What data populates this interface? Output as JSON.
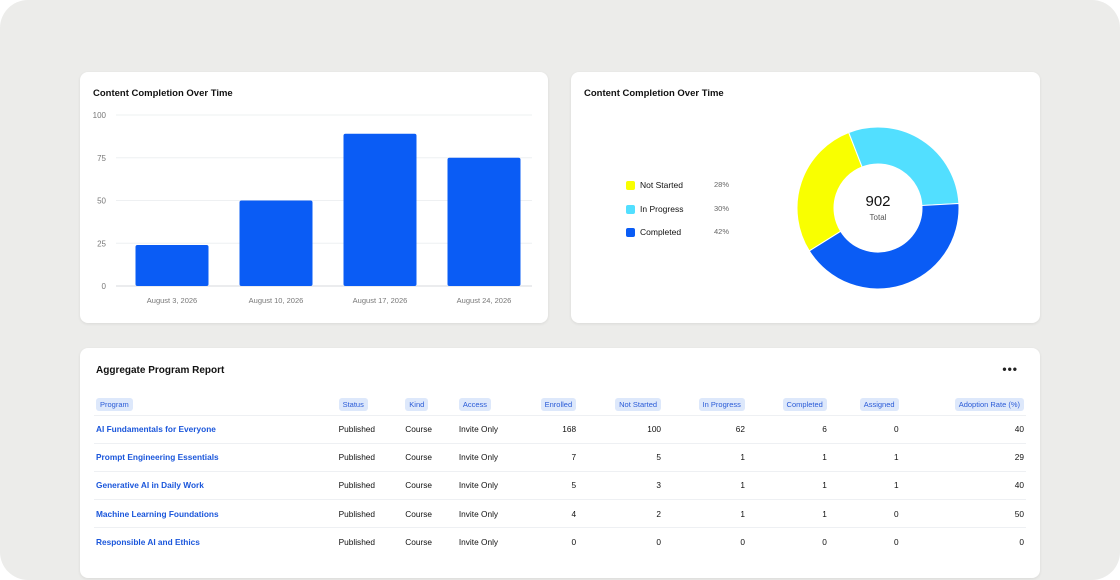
{
  "bar_card": {
    "title": "Content Completion Over Time"
  },
  "donut_card": {
    "title": "Content Completion Over Time",
    "total": "902",
    "total_label": "Total",
    "legend": [
      {
        "label": "Not Started",
        "pct": "28%",
        "color": "#f9ff00"
      },
      {
        "label": "In Progress",
        "pct": "30%",
        "color": "#52dfff"
      },
      {
        "label": "Completed",
        "pct": "42%",
        "color": "#0a5cf5"
      }
    ]
  },
  "chart_data": [
    {
      "type": "bar",
      "title": "Content Completion Over Time",
      "categories": [
        "August 3, 2026",
        "August 10, 2026",
        "August 17, 2026",
        "August 24, 2026"
      ],
      "values": [
        24,
        50,
        89,
        75
      ],
      "ylim": [
        0,
        100
      ],
      "yticks": [
        0,
        25,
        50,
        75,
        100
      ],
      "color": "#0a5cf5",
      "grid": true
    },
    {
      "type": "pie",
      "title": "Content Completion Over Time",
      "labels": [
        "Not Started",
        "In Progress",
        "Completed"
      ],
      "values": [
        28,
        30,
        42
      ],
      "colors": [
        "#f9ff00",
        "#52dfff",
        "#0a5cf5"
      ],
      "total": 902,
      "legend_position": "left"
    }
  ],
  "table": {
    "title": "Aggregate Program Report",
    "more_label": "•••",
    "columns": [
      "Program",
      "Status",
      "Kind",
      "Access",
      "Enrolled",
      "Not Started",
      "In Progress",
      "Completed",
      "Assigned",
      "Adoption Rate (%)"
    ],
    "rows": [
      [
        "AI Fundamentals for Everyone",
        "Published",
        "Course",
        "Invite Only",
        "168",
        "100",
        "62",
        "6",
        "0",
        "40"
      ],
      [
        "Prompt Engineering Essentials",
        "Published",
        "Course",
        "Invite Only",
        "7",
        "5",
        "1",
        "1",
        "1",
        "29"
      ],
      [
        "Generative AI in Daily Work",
        "Published",
        "Course",
        "Invite Only",
        "5",
        "3",
        "1",
        "1",
        "1",
        "40"
      ],
      [
        "Machine Learning Foundations",
        "Published",
        "Course",
        "Invite Only",
        "4",
        "2",
        "1",
        "1",
        "0",
        "50"
      ],
      [
        "Responsible AI and Ethics",
        "Published",
        "Course",
        "Invite Only",
        "0",
        "0",
        "0",
        "0",
        "0",
        "0"
      ]
    ]
  }
}
